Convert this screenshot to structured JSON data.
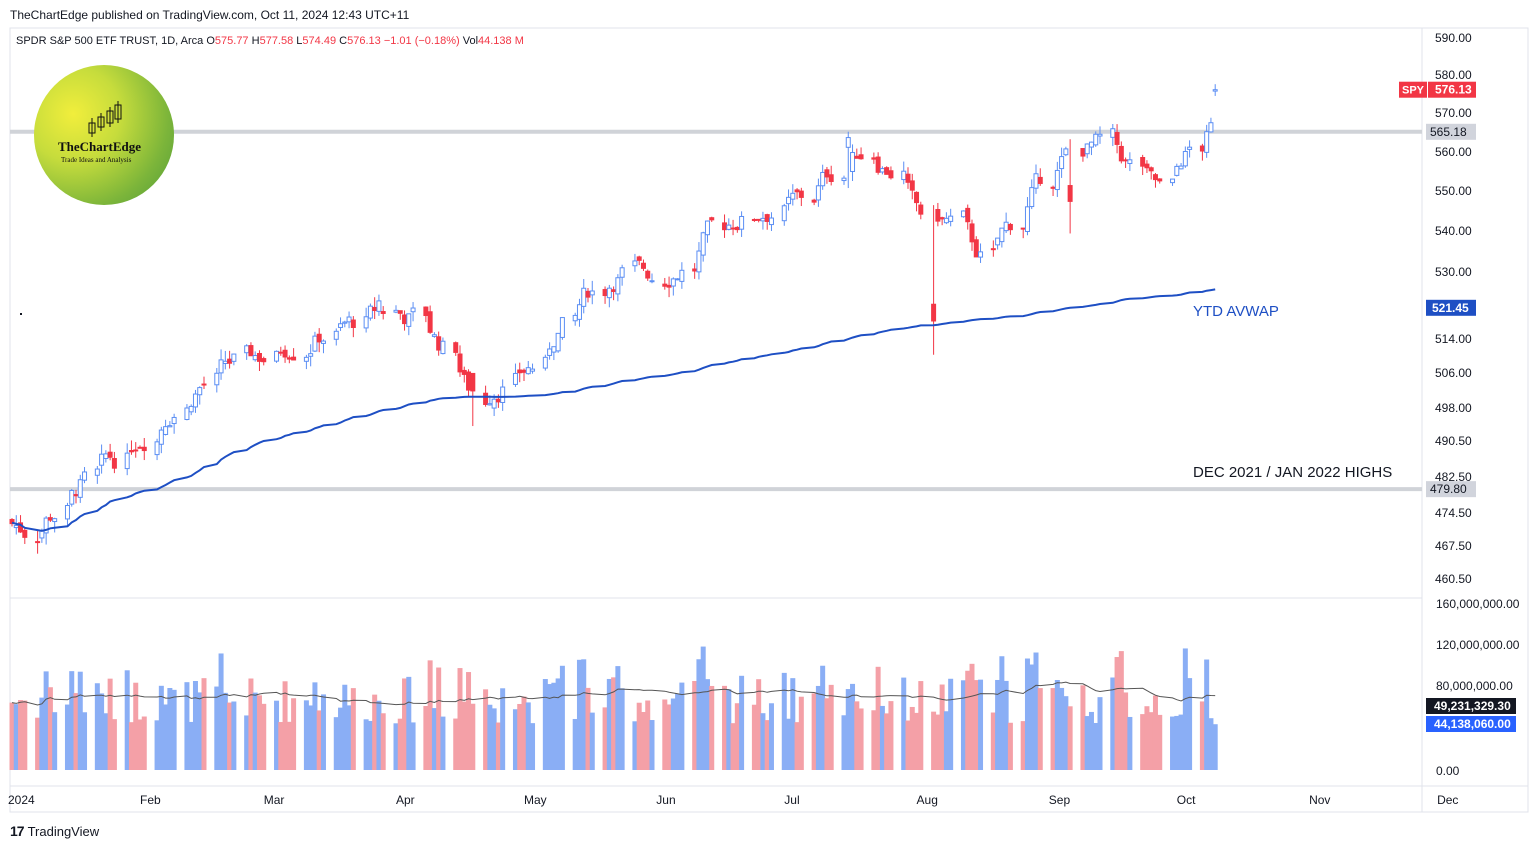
{
  "header": {
    "published": "TheChartEdge published on TradingView.com, Oct 11, 2024 12:43 UTC+11",
    "symbol_desc": "SPDR S&P 500 ETF TRUST, 1D, Arca",
    "open": "575.77",
    "high": "577.58",
    "low": "574.49",
    "close": "576.13",
    "change": "−1.01 (−0.18%)",
    "vol": "44.138 M"
  },
  "logo": {
    "name": "TheChartEdge",
    "tagline": "Trade Ideas and Analysis"
  },
  "footer": {
    "brand": "TradingView"
  },
  "colors": {
    "up": "#5b8ef4",
    "down": "#f23645",
    "avwap": "#1e4fc4",
    "level": "#d0d3d8",
    "vol_up": "#8aaef5",
    "vol_down": "#f4a0a7",
    "vol_ma": "#555555"
  },
  "chart_data": {
    "type": "candlestick",
    "symbol": "SPY",
    "last_price": "576.13",
    "price_axis_ticks": [
      "590.00",
      "580.00",
      "570.00",
      "560.00",
      "550.00",
      "540.00",
      "530.00",
      "521.45",
      "514.00",
      "506.00",
      "498.00",
      "490.50",
      "482.50",
      "474.50",
      "467.50",
      "460.50"
    ],
    "volume_axis_ticks": [
      "160,000,000.00",
      "120,000,000.00",
      "80,000,000.00",
      "0.00"
    ],
    "x_labels": [
      "2024",
      "Feb",
      "Mar",
      "Apr",
      "May",
      "Jun",
      "Jul",
      "Aug",
      "Sep",
      "Oct",
      "Nov",
      "Dec"
    ],
    "levels": [
      {
        "price": 565.18,
        "label": "565.18"
      },
      {
        "price": 479.8,
        "label": "479.80",
        "annotation": "DEC 2021 / JAN 2022 HIGHS"
      }
    ],
    "avwap": {
      "label": "YTD AVWAP",
      "last": "521.45"
    },
    "volume": {
      "ma_label": "49,231,329.30",
      "last_label": "44,138,060.00"
    },
    "closes_weekly_approx": [
      471,
      476,
      482,
      487,
      494,
      500,
      505,
      509,
      510,
      514,
      516,
      518,
      521,
      519,
      511,
      499,
      505,
      508,
      519,
      527,
      531,
      529,
      532,
      541,
      544,
      546,
      548,
      556,
      561,
      555,
      541,
      542,
      532,
      543,
      554,
      561,
      562,
      555,
      549,
      562,
      568,
      572,
      572,
      576
    ],
    "events": [
      {
        "date": "2024-03-28",
        "high": 524.6
      },
      {
        "date": "2024-04-19",
        "low": 493.9
      },
      {
        "date": "2024-07-16",
        "high": 565.2
      },
      {
        "date": "2024-08-05",
        "low": 510.3
      },
      {
        "date": "2024-09-06",
        "low": 539.4
      },
      {
        "date": "2024-10-10",
        "high": 577.6
      }
    ]
  }
}
